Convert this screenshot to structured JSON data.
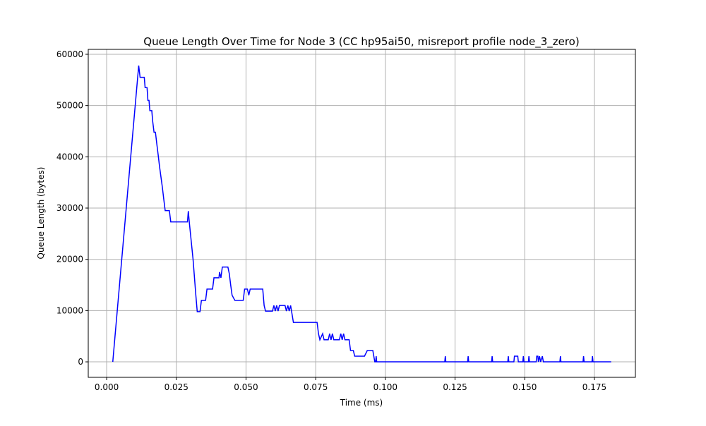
{
  "chart_data": {
    "type": "line",
    "title": "Queue Length Over Time for Node 3 (CC hp95ai50, misreport profile node_3_zero)",
    "x_label": "Time (ms)",
    "y_label": "Queue Length (bytes)",
    "color": "#0000ff",
    "grid": true,
    "xlim": [
      -0.0066,
      0.1897
    ],
    "ylim": [
      -3020,
      60960
    ],
    "xticks": [
      {
        "value": 0,
        "label": "0.000"
      },
      {
        "value": 0.025,
        "label": "0.025"
      },
      {
        "value": 0.05,
        "label": "0.050"
      },
      {
        "value": 0.075,
        "label": "0.075"
      },
      {
        "value": 0.1,
        "label": "0.100"
      },
      {
        "value": 0.125,
        "label": "0.125"
      },
      {
        "value": 0.15,
        "label": "0.150"
      },
      {
        "value": 0.175,
        "label": "0.175"
      }
    ],
    "yticks": [
      0,
      10000,
      20000,
      30000,
      40000,
      50000,
      60000
    ],
    "x": [
      0.0022,
      0.0115,
      0.012,
      0.0135,
      0.0138,
      0.0145,
      0.0148,
      0.0152,
      0.0155,
      0.0162,
      0.0165,
      0.017,
      0.0175,
      0.018,
      0.0185,
      0.019,
      0.0195,
      0.02,
      0.0205,
      0.021,
      0.0225,
      0.023,
      0.029,
      0.0293,
      0.0297,
      0.031,
      0.032,
      0.0325,
      0.0335,
      0.034,
      0.0355,
      0.036,
      0.038,
      0.0385,
      0.0403,
      0.0405,
      0.041,
      0.0415,
      0.0435,
      0.044,
      0.0445,
      0.045,
      0.046,
      0.049,
      0.0495,
      0.0505,
      0.051,
      0.0515,
      0.056,
      0.0565,
      0.057,
      0.0595,
      0.06,
      0.0605,
      0.061,
      0.0615,
      0.062,
      0.064,
      0.0645,
      0.065,
      0.0655,
      0.066,
      0.067,
      0.0755,
      0.076,
      0.0765,
      0.0775,
      0.078,
      0.0795,
      0.08,
      0.0805,
      0.081,
      0.0815,
      0.0835,
      0.084,
      0.0845,
      0.085,
      0.0855,
      0.087,
      0.0875,
      0.0885,
      0.089,
      0.0925,
      0.0935,
      0.0955,
      0.0962,
      0.0965,
      0.0967,
      0.0969,
      0.1213,
      0.1215,
      0.1217,
      0.1295,
      0.1297,
      0.1299,
      0.1381,
      0.1383,
      0.1385,
      0.1439,
      0.1441,
      0.1443,
      0.1461,
      0.1463,
      0.1475,
      0.1477,
      0.1493,
      0.1495,
      0.1497,
      0.1513,
      0.1515,
      0.1517,
      0.1541,
      0.1543,
      0.1547,
      0.1549,
      0.1553,
      0.1557,
      0.1563,
      0.1567,
      0.1626,
      0.1628,
      0.163,
      0.1709,
      0.1711,
      0.1713,
      0.1741,
      0.1743,
      0.1745,
      0.181
    ],
    "values": [
      0,
      57800,
      55500,
      55500,
      53500,
      53500,
      51000,
      51000,
      49000,
      49000,
      47000,
      44800,
      44800,
      42500,
      40300,
      38000,
      36000,
      34000,
      31700,
      29500,
      29500,
      27300,
      27300,
      29400,
      27000,
      20000,
      13000,
      9800,
      9800,
      12000,
      12000,
      14200,
      14200,
      16400,
      16400,
      17500,
      16400,
      18500,
      18500,
      17200,
      15000,
      13000,
      12000,
      12000,
      14200,
      14200,
      13000,
      14200,
      14200,
      11000,
      9900,
      9900,
      11000,
      9900,
      11000,
      9900,
      11000,
      11000,
      9900,
      11000,
      9900,
      11000,
      7700,
      7700,
      5500,
      4300,
      5500,
      4300,
      4300,
      5500,
      4300,
      5500,
      4300,
      4300,
      5500,
      4300,
      5500,
      4300,
      4300,
      2200,
      2200,
      1100,
      1100,
      2200,
      2200,
      0,
      0,
      1100,
      0,
      0,
      1100,
      0,
      0,
      1100,
      0,
      0,
      1100,
      0,
      0,
      1100,
      0,
      0,
      1100,
      1100,
      0,
      0,
      1100,
      0,
      0,
      1100,
      0,
      0,
      1100,
      1100,
      0,
      1100,
      0,
      1100,
      0,
      0,
      1100,
      0,
      0,
      1100,
      0,
      0,
      1100,
      0,
      0
    ]
  }
}
